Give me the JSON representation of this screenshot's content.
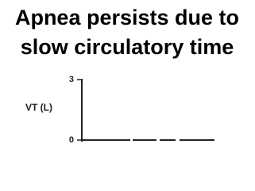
{
  "chart_data": {
    "type": "line",
    "title": [
      "Apnea persists due to",
      "slow circulatory time"
    ],
    "y_label": "VT (L)",
    "categories": [
      null,
      null
    ],
    "values": [
      0,
      0
    ],
    "color": "#222222",
    "ylim": [
      0,
      3
    ],
    "yticks": [
      0,
      3
    ]
  }
}
